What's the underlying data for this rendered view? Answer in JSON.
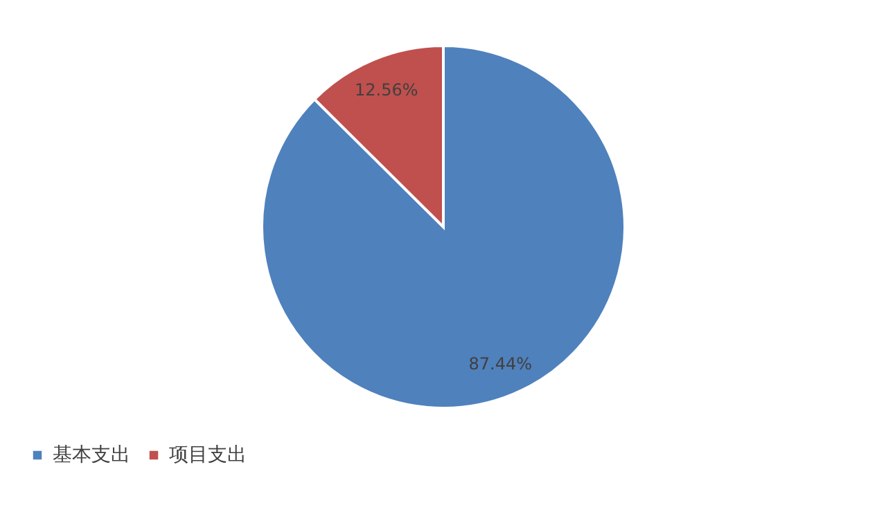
{
  "chart_data": {
    "type": "pie",
    "categories": [
      "基本支出",
      "项目支出"
    ],
    "values": [
      87.44,
      12.56
    ],
    "colors": [
      "#4f81bd",
      "#c0504d"
    ],
    "value_labels": [
      "87.44%",
      "12.56%"
    ],
    "legend": "bottom"
  }
}
